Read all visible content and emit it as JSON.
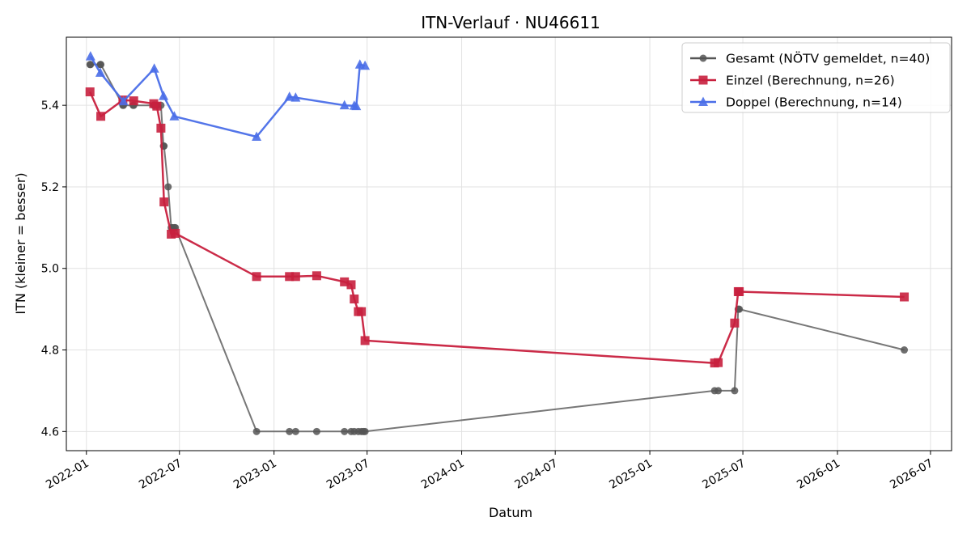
{
  "chart_data": {
    "type": "line",
    "title": "ITN-Verlauf · NU46611",
    "xlabel": "Datum",
    "ylabel": "ITN  (kleiner = besser)",
    "xlim": [
      "2021-11-23",
      "2026-08-11"
    ],
    "ylim": [
      4.553,
      5.567
    ],
    "x_ticks": [
      "2022-01",
      "2022-07",
      "2023-01",
      "2023-07",
      "2024-01",
      "2024-07",
      "2025-01",
      "2025-07",
      "2026-01",
      "2026-07"
    ],
    "y_ticks": [
      4.6,
      4.8,
      5.0,
      5.2,
      5.4
    ],
    "grid": true,
    "legend_position": "top-right",
    "series": [
      {
        "name": "Gesamt (NÖTV gemeldet, n=40)",
        "color": "#555555",
        "marker": "circle",
        "points": [
          [
            "2022-01-08",
            5.5
          ],
          [
            "2022-01-09",
            5.5
          ],
          [
            "2022-01-28",
            5.5
          ],
          [
            "2022-01-29",
            5.5
          ],
          [
            "2022-03-13",
            5.4
          ],
          [
            "2022-03-14",
            5.4
          ],
          [
            "2022-04-02",
            5.4
          ],
          [
            "2022-04-03",
            5.4
          ],
          [
            "2022-05-12",
            5.4
          ],
          [
            "2022-05-13",
            5.4
          ],
          [
            "2022-05-18",
            5.4
          ],
          [
            "2022-05-26",
            5.4
          ],
          [
            "2022-05-31",
            5.3
          ],
          [
            "2022-06-01",
            5.3
          ],
          [
            "2022-06-09",
            5.2
          ],
          [
            "2022-06-15",
            5.1
          ],
          [
            "2022-06-17",
            5.1
          ],
          [
            "2022-06-21",
            5.1
          ],
          [
            "2022-06-23",
            5.1
          ],
          [
            "2022-11-28",
            4.6
          ],
          [
            "2023-01-31",
            4.6
          ],
          [
            "2023-02-12",
            4.6
          ],
          [
            "2023-03-25",
            4.6
          ],
          [
            "2023-05-18",
            4.6
          ],
          [
            "2023-05-31",
            4.6
          ],
          [
            "2023-06-06",
            4.6
          ],
          [
            "2023-06-14",
            4.6
          ],
          [
            "2023-06-20",
            4.6
          ],
          [
            "2023-06-24",
            4.6
          ],
          [
            "2023-06-27",
            4.6
          ],
          [
            "2025-05-07",
            4.7
          ],
          [
            "2025-05-14",
            4.7
          ],
          [
            "2025-06-15",
            4.7
          ],
          [
            "2025-06-22",
            4.9
          ],
          [
            "2025-06-24",
            4.9
          ],
          [
            "2026-05-11",
            4.8
          ]
        ]
      },
      {
        "name": "Einzel (Berechnung, n=26)",
        "color": "#c8203e",
        "marker": "square",
        "points": [
          [
            "2022-01-08",
            5.433
          ],
          [
            "2022-01-29",
            5.373
          ],
          [
            "2022-03-13",
            5.413
          ],
          [
            "2022-04-03",
            5.411
          ],
          [
            "2022-05-12",
            5.404
          ],
          [
            "2022-05-18",
            5.398
          ],
          [
            "2022-05-26",
            5.344
          ],
          [
            "2022-06-01",
            5.163
          ],
          [
            "2022-06-15",
            5.084
          ],
          [
            "2022-06-23",
            5.086
          ],
          [
            "2022-11-28",
            4.98
          ],
          [
            "2023-01-31",
            4.98
          ],
          [
            "2023-02-12",
            4.98
          ],
          [
            "2023-03-25",
            4.982
          ],
          [
            "2023-05-18",
            4.967
          ],
          [
            "2023-05-31",
            4.96
          ],
          [
            "2023-06-06",
            4.925
          ],
          [
            "2023-06-14",
            4.894
          ],
          [
            "2023-06-20",
            4.894
          ],
          [
            "2023-06-27",
            4.823
          ],
          [
            "2025-05-07",
            4.768
          ],
          [
            "2025-05-14",
            4.769
          ],
          [
            "2025-06-15",
            4.866
          ],
          [
            "2025-06-22",
            4.943
          ],
          [
            "2025-06-24",
            4.943
          ],
          [
            "2026-05-11",
            4.93
          ]
        ]
      },
      {
        "name": "Doppel (Berechnung, n=14)",
        "color": "#4a6ee8",
        "marker": "triangle",
        "points": [
          [
            "2022-01-09",
            5.52
          ],
          [
            "2022-01-28",
            5.48
          ],
          [
            "2022-03-14",
            5.41
          ],
          [
            "2022-05-13",
            5.49
          ],
          [
            "2022-05-31",
            5.423
          ],
          [
            "2022-06-21",
            5.373
          ],
          [
            "2022-11-28",
            5.323
          ],
          [
            "2023-01-31",
            5.421
          ],
          [
            "2023-02-12",
            5.419
          ],
          [
            "2023-05-18",
            5.4
          ],
          [
            "2023-06-06",
            5.399
          ],
          [
            "2023-06-10",
            5.398
          ],
          [
            "2023-06-17",
            5.5
          ],
          [
            "2023-06-27",
            5.497
          ]
        ]
      }
    ]
  }
}
